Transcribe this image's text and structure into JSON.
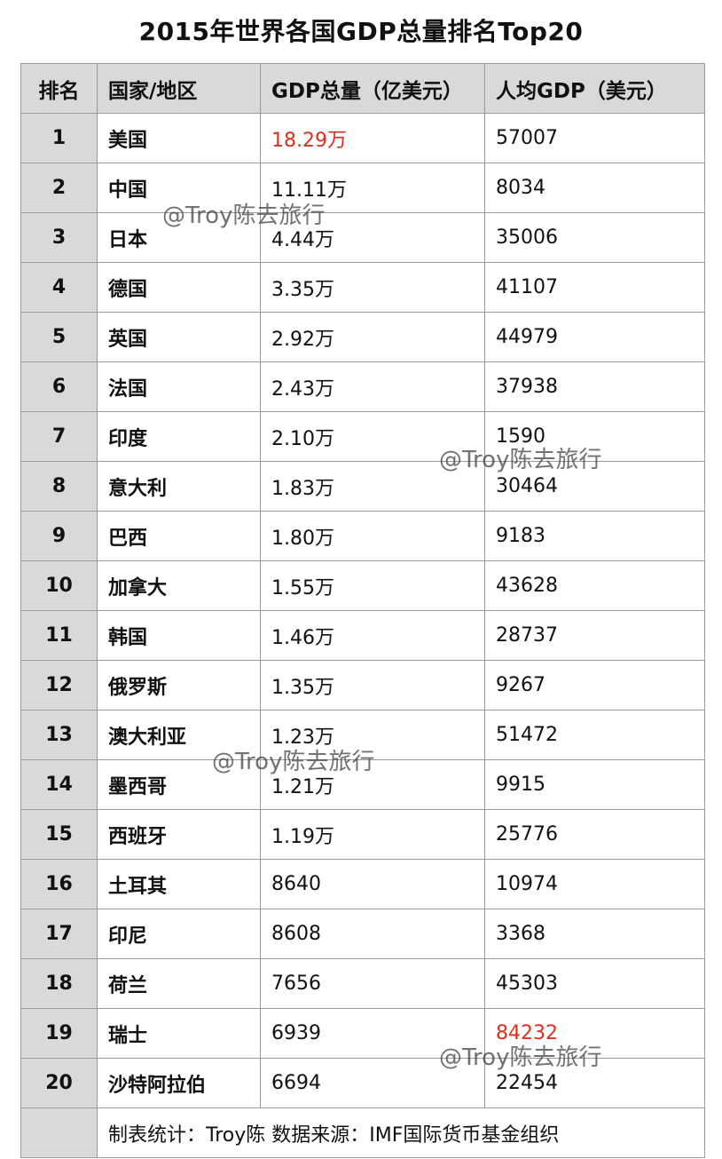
{
  "title": "2015年世界各国GDP总量排名Top20",
  "headers": {
    "rank": "排名",
    "country": "国家/地区",
    "gdp": "GDP总量（亿美元）",
    "per_capita": "人均GDP（美元）"
  },
  "rows": [
    {
      "rank": "1",
      "country": "美国",
      "gdp": "18.29万",
      "per_capita": "57007"
    },
    {
      "rank": "2",
      "country": "中国",
      "gdp": "11.11万",
      "per_capita": "8034"
    },
    {
      "rank": "3",
      "country": "日本",
      "gdp": "4.44万",
      "per_capita": "35006"
    },
    {
      "rank": "4",
      "country": "德国",
      "gdp": "3.35万",
      "per_capita": "41107"
    },
    {
      "rank": "5",
      "country": "英国",
      "gdp": "2.92万",
      "per_capita": "44979"
    },
    {
      "rank": "6",
      "country": "法国",
      "gdp": "2.43万",
      "per_capita": "37938"
    },
    {
      "rank": "7",
      "country": "印度",
      "gdp": "2.10万",
      "per_capita": "1590"
    },
    {
      "rank": "8",
      "country": "意大利",
      "gdp": "1.83万",
      "per_capita": "30464"
    },
    {
      "rank": "9",
      "country": "巴西",
      "gdp": "1.80万",
      "per_capita": "9183"
    },
    {
      "rank": "10",
      "country": "加拿大",
      "gdp": "1.55万",
      "per_capita": "43628"
    },
    {
      "rank": "11",
      "country": "韩国",
      "gdp": "1.46万",
      "per_capita": "28737"
    },
    {
      "rank": "12",
      "country": "俄罗斯",
      "gdp": "1.35万",
      "per_capita": "9267"
    },
    {
      "rank": "13",
      "country": "澳大利亚",
      "gdp": "1.23万",
      "per_capita": "51472"
    },
    {
      "rank": "14",
      "country": "墨西哥",
      "gdp": "1.21万",
      "per_capita": "9915"
    },
    {
      "rank": "15",
      "country": "西班牙",
      "gdp": "1.19万",
      "per_capita": "25776"
    },
    {
      "rank": "16",
      "country": "土耳其",
      "gdp": "8640",
      "per_capita": "10974"
    },
    {
      "rank": "17",
      "country": "印尼",
      "gdp": "8608",
      "per_capita": "3368"
    },
    {
      "rank": "18",
      "country": "荷兰",
      "gdp": "7656",
      "per_capita": "45303"
    },
    {
      "rank": "19",
      "country": "瑞士",
      "gdp": "6939",
      "per_capita": "84232"
    },
    {
      "rank": "20",
      "country": "沙特阿拉伯",
      "gdp": "6694",
      "per_capita": "22454"
    }
  ],
  "highlight_color": "#d9301f",
  "highlights": {
    "gdp_rank": "1",
    "per_capita_rank": "19"
  },
  "footer": "制表统计：Troy陈 数据来源：IMF国际货币基金组织",
  "watermark": "@Troy陈去旅行"
}
